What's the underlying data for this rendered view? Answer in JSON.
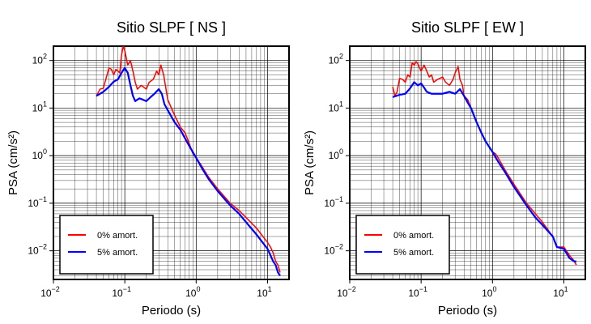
{
  "chart_data": [
    {
      "type": "line",
      "title": "Sitio SLPF [ NS ]",
      "xlabel": "Periodo (s)",
      "ylabel": "PSA (cm/s²)",
      "xscale": "log",
      "yscale": "log",
      "xlim": [
        0.01,
        20
      ],
      "ylim": [
        0.0025,
        200
      ],
      "grid": true,
      "legend_position": "bottom-left",
      "xticks": [
        {
          "value": 0.01,
          "base": "10",
          "exp": "−2"
        },
        {
          "value": 0.1,
          "base": "10",
          "exp": "−1"
        },
        {
          "value": 1,
          "base": "10",
          "exp": "0"
        },
        {
          "value": 10,
          "base": "10",
          "exp": "1"
        }
      ],
      "yticks": [
        {
          "value": 0.01,
          "base": "10",
          "exp": "−2"
        },
        {
          "value": 0.1,
          "base": "10",
          "exp": "−1"
        },
        {
          "value": 1,
          "base": "10",
          "exp": "0"
        },
        {
          "value": 10,
          "base": "10",
          "exp": "1"
        },
        {
          "value": 100,
          "base": "10",
          "exp": "2"
        }
      ],
      "series": [
        {
          "name": "0% amort.",
          "color": "#ff0000",
          "points": [
            [
              0.04,
              18
            ],
            [
              0.045,
              25
            ],
            [
              0.05,
              26
            ],
            [
              0.06,
              70
            ],
            [
              0.065,
              65
            ],
            [
              0.07,
              50
            ],
            [
              0.075,
              65
            ],
            [
              0.08,
              60
            ],
            [
              0.085,
              55
            ],
            [
              0.09,
              130
            ],
            [
              0.095,
              200
            ],
            [
              0.1,
              160
            ],
            [
              0.11,
              80
            ],
            [
              0.12,
              100
            ],
            [
              0.13,
              60
            ],
            [
              0.14,
              35
            ],
            [
              0.15,
              25
            ],
            [
              0.17,
              30
            ],
            [
              0.2,
              25
            ],
            [
              0.22,
              35
            ],
            [
              0.25,
              40
            ],
            [
              0.28,
              60
            ],
            [
              0.3,
              50
            ],
            [
              0.32,
              80
            ],
            [
              0.35,
              50
            ],
            [
              0.4,
              15
            ],
            [
              0.45,
              10
            ],
            [
              0.5,
              7
            ],
            [
              0.6,
              4
            ],
            [
              0.7,
              3
            ],
            [
              0.8,
              1.8
            ],
            [
              0.9,
              1.1
            ],
            [
              1.0,
              0.9
            ],
            [
              1.2,
              0.6
            ],
            [
              1.5,
              0.35
            ],
            [
              2,
              0.2
            ],
            [
              3,
              0.1
            ],
            [
              4,
              0.07
            ],
            [
              5,
              0.05
            ],
            [
              7,
              0.03
            ],
            [
              10,
              0.015
            ],
            [
              11,
              0.012
            ],
            [
              12,
              0.009
            ],
            [
              13,
              0.006
            ],
            [
              14,
              0.005
            ],
            [
              15,
              0.0035
            ]
          ]
        },
        {
          "name": "5% amort.",
          "color": "#0000ff",
          "points": [
            [
              0.04,
              18
            ],
            [
              0.05,
              22
            ],
            [
              0.06,
              28
            ],
            [
              0.07,
              36
            ],
            [
              0.08,
              40
            ],
            [
              0.09,
              55
            ],
            [
              0.1,
              70
            ],
            [
              0.11,
              55
            ],
            [
              0.12,
              30
            ],
            [
              0.13,
              18
            ],
            [
              0.14,
              14
            ],
            [
              0.16,
              16
            ],
            [
              0.18,
              15
            ],
            [
              0.2,
              14
            ],
            [
              0.23,
              17
            ],
            [
              0.26,
              20
            ],
            [
              0.3,
              25
            ],
            [
              0.33,
              20
            ],
            [
              0.36,
              12
            ],
            [
              0.4,
              9
            ],
            [
              0.5,
              5
            ],
            [
              0.6,
              3.5
            ],
            [
              0.7,
              2.3
            ],
            [
              0.8,
              1.6
            ],
            [
              1.0,
              0.9
            ],
            [
              1.2,
              0.55
            ],
            [
              1.5,
              0.32
            ],
            [
              2,
              0.18
            ],
            [
              3,
              0.09
            ],
            [
              4,
              0.06
            ],
            [
              5,
              0.04
            ],
            [
              7,
              0.022
            ],
            [
              10,
              0.011
            ],
            [
              12,
              0.006
            ],
            [
              13,
              0.005
            ],
            [
              14,
              0.0035
            ],
            [
              15,
              0.003
            ]
          ]
        }
      ]
    },
    {
      "type": "line",
      "title": "Sitio SLPF [ EW ]",
      "xlabel": "Periodo (s)",
      "ylabel": "PSA (cm/s²)",
      "xscale": "log",
      "yscale": "log",
      "xlim": [
        0.01,
        20
      ],
      "ylim": [
        0.0025,
        200
      ],
      "grid": true,
      "legend_position": "bottom-left",
      "xticks": [
        {
          "value": 0.01,
          "base": "10",
          "exp": "−2"
        },
        {
          "value": 0.1,
          "base": "10",
          "exp": "−1"
        },
        {
          "value": 1,
          "base": "10",
          "exp": "0"
        },
        {
          "value": 10,
          "base": "10",
          "exp": "1"
        }
      ],
      "yticks": [
        {
          "value": 0.01,
          "base": "10",
          "exp": "−2"
        },
        {
          "value": 0.1,
          "base": "10",
          "exp": "−1"
        },
        {
          "value": 1,
          "base": "10",
          "exp": "0"
        },
        {
          "value": 10,
          "base": "10",
          "exp": "1"
        },
        {
          "value": 100,
          "base": "10",
          "exp": "2"
        }
      ],
      "series": [
        {
          "name": "0% amort.",
          "color": "#ff0000",
          "points": [
            [
              0.04,
              28
            ],
            [
              0.043,
              18
            ],
            [
              0.046,
              22
            ],
            [
              0.05,
              42
            ],
            [
              0.055,
              40
            ],
            [
              0.06,
              35
            ],
            [
              0.065,
              50
            ],
            [
              0.07,
              45
            ],
            [
              0.075,
              90
            ],
            [
              0.08,
              80
            ],
            [
              0.085,
              95
            ],
            [
              0.09,
              85
            ],
            [
              0.095,
              70
            ],
            [
              0.1,
              60
            ],
            [
              0.11,
              80
            ],
            [
              0.12,
              60
            ],
            [
              0.13,
              45
            ],
            [
              0.14,
              50
            ],
            [
              0.15,
              35
            ],
            [
              0.17,
              40
            ],
            [
              0.2,
              45
            ],
            [
              0.22,
              35
            ],
            [
              0.25,
              30
            ],
            [
              0.28,
              40
            ],
            [
              0.3,
              55
            ],
            [
              0.33,
              75
            ],
            [
              0.35,
              40
            ],
            [
              0.38,
              30
            ],
            [
              0.4,
              18
            ],
            [
              0.45,
              15
            ],
            [
              0.5,
              10
            ],
            [
              0.6,
              5
            ],
            [
              0.7,
              3
            ],
            [
              0.8,
              2
            ],
            [
              1.0,
              1.2
            ],
            [
              1.1,
              1.1
            ],
            [
              1.2,
              0.9
            ],
            [
              1.5,
              0.5
            ],
            [
              2,
              0.25
            ],
            [
              3,
              0.1
            ],
            [
              4,
              0.06
            ],
            [
              5,
              0.04
            ],
            [
              7,
              0.02
            ],
            [
              8,
              0.012
            ],
            [
              10,
              0.012
            ],
            [
              12,
              0.008
            ],
            [
              13,
              0.007
            ],
            [
              14,
              0.006
            ],
            [
              15,
              0.005
            ]
          ]
        },
        {
          "name": "5% amort.",
          "color": "#0000ff",
          "points": [
            [
              0.04,
              17
            ],
            [
              0.05,
              19
            ],
            [
              0.06,
              20
            ],
            [
              0.07,
              26
            ],
            [
              0.08,
              35
            ],
            [
              0.09,
              30
            ],
            [
              0.1,
              33
            ],
            [
              0.11,
              27
            ],
            [
              0.12,
              22
            ],
            [
              0.14,
              20
            ],
            [
              0.17,
              20
            ],
            [
              0.2,
              20
            ],
            [
              0.25,
              22
            ],
            [
              0.3,
              20
            ],
            [
              0.35,
              25
            ],
            [
              0.4,
              18
            ],
            [
              0.45,
              13
            ],
            [
              0.5,
              10
            ],
            [
              0.6,
              5
            ],
            [
              0.7,
              3
            ],
            [
              0.8,
              2
            ],
            [
              1.0,
              1.2
            ],
            [
              1.2,
              0.75
            ],
            [
              1.5,
              0.45
            ],
            [
              2,
              0.22
            ],
            [
              3,
              0.09
            ],
            [
              4,
              0.05
            ],
            [
              5,
              0.035
            ],
            [
              7,
              0.02
            ],
            [
              8,
              0.012
            ],
            [
              10,
              0.011
            ],
            [
              12,
              0.007
            ],
            [
              14,
              0.006
            ],
            [
              15,
              0.006
            ]
          ]
        }
      ]
    }
  ]
}
